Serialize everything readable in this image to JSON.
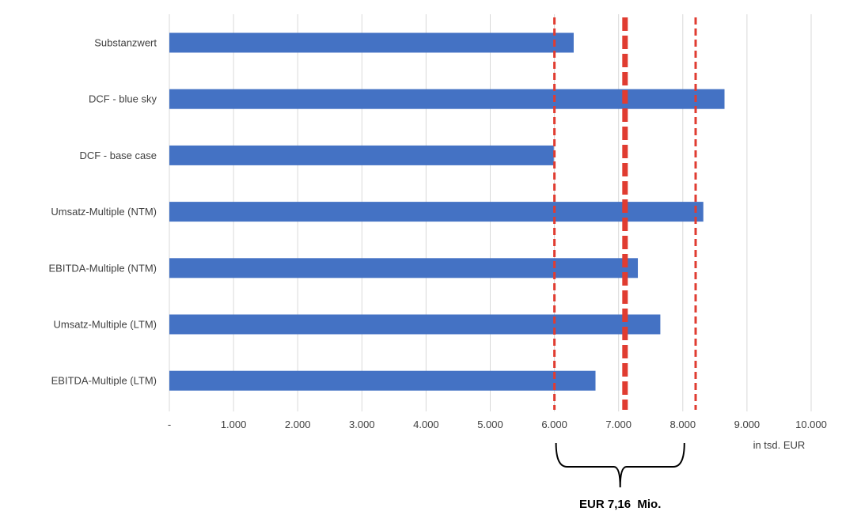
{
  "chart_data": {
    "type": "bar",
    "orientation": "horizontal",
    "categories": [
      "Substanzwert",
      "DCF - blue sky",
      "DCF - base case",
      "Umsatz-Multiple (NTM)",
      "EBITDA-Multiple (NTM)",
      "Umsatz-Multiple (LTM)",
      "EBITDA-Multiple (LTM)"
    ],
    "values": [
      6300,
      8650,
      5990,
      8320,
      7300,
      7650,
      6640
    ],
    "xlim": [
      0,
      10000
    ],
    "xticks": [
      {
        "value": 0,
        "label": "-"
      },
      {
        "value": 1000,
        "label": "1.000"
      },
      {
        "value": 2000,
        "label": "2.000"
      },
      {
        "value": 3000,
        "label": "3.000"
      },
      {
        "value": 4000,
        "label": "4.000"
      },
      {
        "value": 5000,
        "label": "5.000"
      },
      {
        "value": 6000,
        "label": "6.000"
      },
      {
        "value": 7000,
        "label": "7.000"
      },
      {
        "value": 8000,
        "label": "8.000"
      },
      {
        "value": 9000,
        "label": "9.000"
      },
      {
        "value": 10000,
        "label": "10.000"
      }
    ],
    "xlabel": "in tsd. EUR",
    "grid": true,
    "bar_color": "#4472c4",
    "grid_color": "#d9d9d9",
    "reference_lines": [
      {
        "value": 6000,
        "style": "dashed",
        "weight": "thin",
        "color": "#e03c31"
      },
      {
        "value": 7100,
        "style": "dashed",
        "weight": "thick",
        "color": "#e03c31"
      },
      {
        "value": 8200,
        "style": "dashed",
        "weight": "thin",
        "color": "#e03c31"
      }
    ],
    "range_bracket": {
      "from": 6000,
      "to": 8000,
      "label": "EUR 7,16  Mio."
    }
  }
}
